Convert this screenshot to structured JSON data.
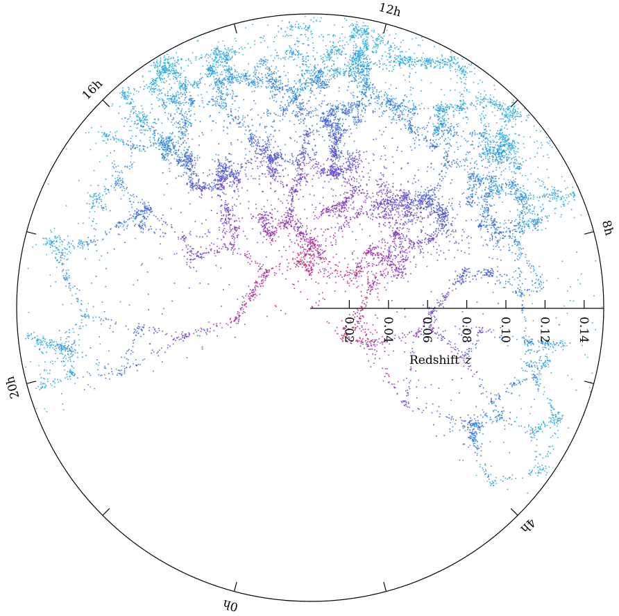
{
  "chart_data": {
    "type": "scatter",
    "projection": "polar wedge (right ascension vs redshift)",
    "title": "",
    "radial_axis": {
      "label": "Redshift",
      "label_symbol": "z",
      "range": [
        0,
        0.15
      ],
      "ticks": [
        0.02,
        0.04,
        0.06,
        0.08,
        0.1,
        0.12,
        0.14
      ],
      "tick_labels": [
        "0.02",
        "0.04",
        "0.06",
        "0.08",
        "0.10",
        "0.12",
        "0.14"
      ]
    },
    "angular_axis": {
      "labels": [
        {
          "hour": 12,
          "text": "12h"
        },
        {
          "hour": 8,
          "text": "8h"
        },
        {
          "hour": 4,
          "text": "4h"
        },
        {
          "hour": 0,
          "text": "0h"
        },
        {
          "hour": 20,
          "text": "20h"
        },
        {
          "hour": 16,
          "text": "16h"
        }
      ],
      "tick_hours": [
        0,
        2,
        4,
        6,
        8,
        10,
        12,
        14,
        16,
        18,
        20,
        22
      ]
    },
    "wedges": [
      {
        "region": "north",
        "ra_from_h": 16.0,
        "ra_to_h": 8.3
      },
      {
        "region": "south",
        "ra_from_h": 20.5,
        "ra_to_h": 3.9
      }
    ],
    "color_by_redshift": [
      "#e8203c",
      "#9a38c0",
      "#4a5ee0",
      "#2fb4e6"
    ],
    "grid": false,
    "legend": "none"
  }
}
